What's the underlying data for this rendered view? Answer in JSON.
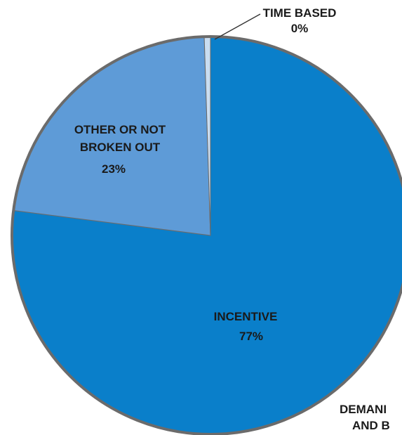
{
  "chart_data": {
    "type": "pie",
    "slices": [
      {
        "label": "INCENTIVE",
        "percent_label": "77%",
        "value": 77,
        "color": "#0a7fca"
      },
      {
        "label": "OTHER OR NOT BROKEN OUT",
        "label_lines": [
          "OTHER OR NOT",
          "BROKEN OUT"
        ],
        "percent_label": "23%",
        "value": 22.5,
        "color": "#5e9bd7"
      },
      {
        "label": "TIME BASED",
        "percent_label": "0%",
        "value": 0.5,
        "color": "#c9ddf1"
      }
    ],
    "cut_label_lines": [
      "DEMANI",
      "AND B"
    ],
    "border_color": "#6b6b6b",
    "leader_line_color": "#333333",
    "title": "",
    "legend": "none"
  }
}
